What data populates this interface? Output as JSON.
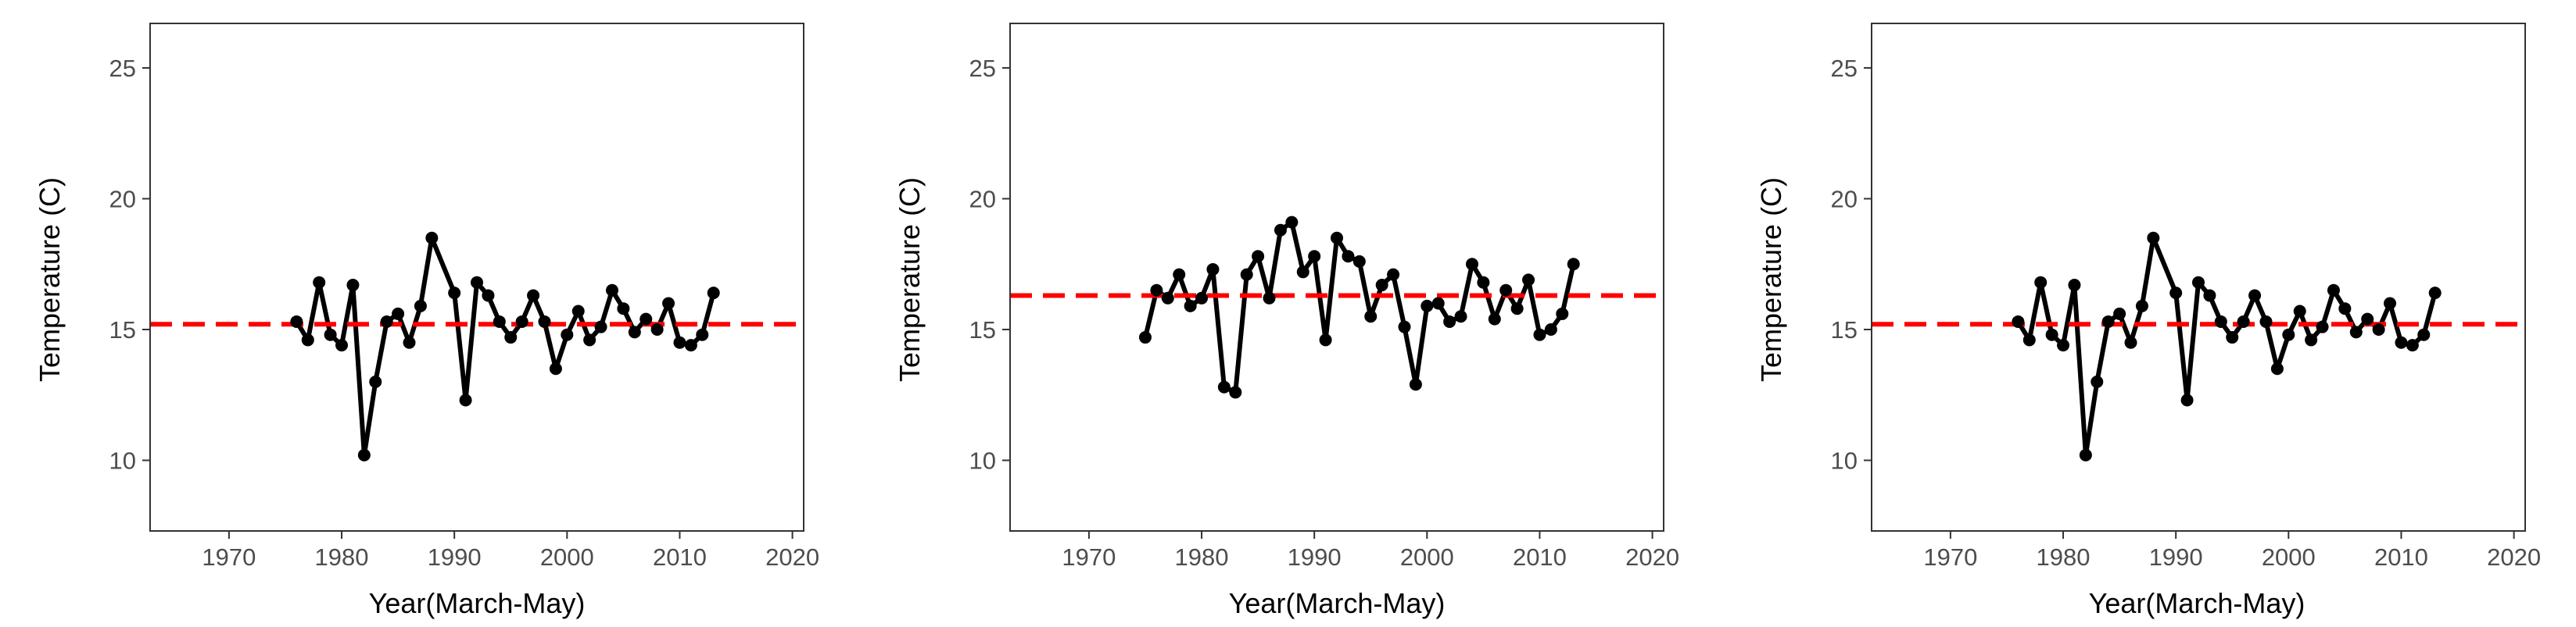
{
  "chart_data": [
    {
      "type": "line",
      "xlabel": "Year(March-May)",
      "ylabel": "Temperature (C)",
      "xlim": [
        1963,
        2021
      ],
      "ylim": [
        7.3,
        26.7
      ],
      "xticks": [
        1970,
        1980,
        1990,
        2000,
        2010,
        2020
      ],
      "yticks": [
        10,
        15,
        20,
        25
      ],
      "grid": false,
      "reference_line": 15.2,
      "reference_line_color": "#ff0000",
      "series_color": "#000000",
      "x": [
        1976,
        1977,
        1978,
        1979,
        1980,
        1981,
        1982,
        1983,
        1984,
        1985,
        1986,
        1987,
        1988,
        1990,
        1991,
        1992,
        1993,
        1994,
        1995,
        1996,
        1997,
        1998,
        1999,
        2000,
        2001,
        2002,
        2003,
        2004,
        2005,
        2006,
        2007,
        2008,
        2009,
        2010,
        2011,
        2012,
        2013
      ],
      "y": [
        15.3,
        14.6,
        16.8,
        14.8,
        14.4,
        16.7,
        10.2,
        13.0,
        15.3,
        15.6,
        14.5,
        15.9,
        18.5,
        16.4,
        12.3,
        16.8,
        16.3,
        15.3,
        14.7,
        15.3,
        16.3,
        15.3,
        13.5,
        14.8,
        15.7,
        14.6,
        15.1,
        16.5,
        15.8,
        14.9,
        15.4,
        15.0,
        16.0,
        14.5,
        14.4,
        14.8,
        16.4
      ]
    },
    {
      "type": "line",
      "xlabel": "Year(March-May)",
      "ylabel": "Temperature (C)",
      "xlim": [
        1963,
        2021
      ],
      "ylim": [
        7.3,
        26.7
      ],
      "xticks": [
        1970,
        1980,
        1990,
        2000,
        2010,
        2020
      ],
      "yticks": [
        10,
        15,
        20,
        25
      ],
      "grid": false,
      "reference_line": 16.3,
      "reference_line_color": "#ff0000",
      "series_color": "#000000",
      "x": [
        1975,
        1976,
        1977,
        1978,
        1979,
        1980,
        1981,
        1982,
        1983,
        1984,
        1985,
        1986,
        1987,
        1988,
        1989,
        1990,
        1991,
        1992,
        1993,
        1994,
        1995,
        1996,
        1997,
        1998,
        1999,
        2000,
        2001,
        2002,
        2003,
        2004,
        2005,
        2006,
        2007,
        2008,
        2009,
        2010,
        2011,
        2012,
        2013
      ],
      "y": [
        14.7,
        16.5,
        16.2,
        17.1,
        15.9,
        16.2,
        17.3,
        12.8,
        12.6,
        17.1,
        17.8,
        16.2,
        18.8,
        19.1,
        17.2,
        17.8,
        14.6,
        18.5,
        17.8,
        17.6,
        15.5,
        16.7,
        17.1,
        15.1,
        12.9,
        15.9,
        16.0,
        15.3,
        15.5,
        17.5,
        16.8,
        15.4,
        16.5,
        15.8,
        16.9,
        14.8,
        15.0,
        15.6,
        17.5
      ]
    },
    {
      "type": "line",
      "xlabel": "Year(March-May)",
      "ylabel": "Temperature (C)",
      "xlim": [
        1963,
        2021
      ],
      "ylim": [
        7.3,
        26.7
      ],
      "xticks": [
        1970,
        1980,
        1990,
        2000,
        2010,
        2020
      ],
      "yticks": [
        10,
        15,
        20,
        25
      ],
      "grid": false,
      "reference_line": 15.2,
      "reference_line_color": "#ff0000",
      "series_color": "#000000",
      "x": [
        1976,
        1977,
        1978,
        1979,
        1980,
        1981,
        1982,
        1983,
        1984,
        1985,
        1986,
        1987,
        1988,
        1990,
        1991,
        1992,
        1993,
        1994,
        1995,
        1996,
        1997,
        1998,
        1999,
        2000,
        2001,
        2002,
        2003,
        2004,
        2005,
        2006,
        2007,
        2008,
        2009,
        2010,
        2011,
        2012,
        2013
      ],
      "y": [
        15.3,
        14.6,
        16.8,
        14.8,
        14.4,
        16.7,
        10.2,
        13.0,
        15.3,
        15.6,
        14.5,
        15.9,
        18.5,
        16.4,
        12.3,
        16.8,
        16.3,
        15.3,
        14.7,
        15.3,
        16.3,
        15.3,
        13.5,
        14.8,
        15.7,
        14.6,
        15.1,
        16.5,
        15.8,
        14.9,
        15.4,
        15.0,
        16.0,
        14.5,
        14.4,
        14.8,
        16.4
      ]
    }
  ]
}
